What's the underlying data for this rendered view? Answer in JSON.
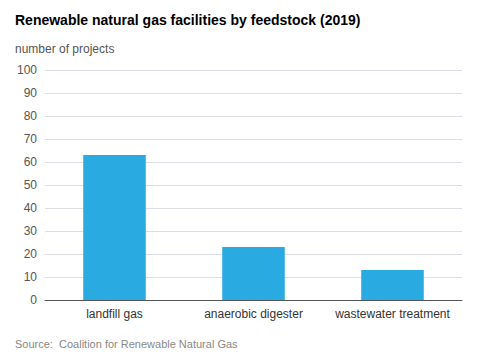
{
  "chart_data": {
    "type": "bar",
    "title": "Renewable natural gas facilities by feedstock (2019)",
    "ylabel": "number of projects",
    "categories": [
      "landfill gas",
      "anaerobic digester",
      "wastewater treatment"
    ],
    "values": [
      63,
      23,
      13
    ],
    "color": "#29abe2",
    "ylim": [
      0,
      100
    ],
    "yticks": [
      0,
      10,
      20,
      30,
      40,
      50,
      60,
      70,
      80,
      90,
      100
    ],
    "grid": true,
    "annotation": "Source:  Coalition for Renewable Natural Gas"
  }
}
